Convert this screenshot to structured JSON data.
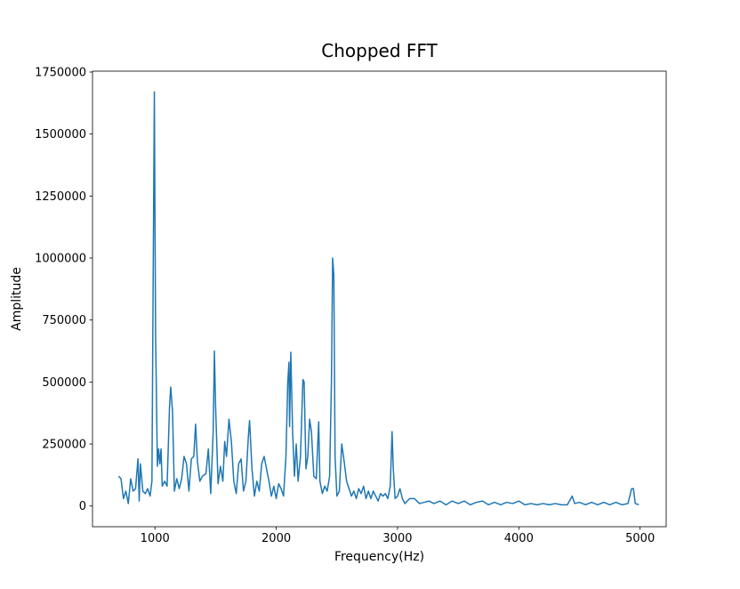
{
  "chart_data": {
    "type": "line",
    "title": "Chopped FFT",
    "x_label": "Frequency(Hz)",
    "y_label": "Amplitude",
    "xlim": [
      485,
      5215
    ],
    "ylim": [
      -83500,
      1753500
    ],
    "xticks": [
      1000,
      2000,
      3000,
      4000,
      5000
    ],
    "yticks": [
      0,
      250000,
      500000,
      750000,
      1000000,
      1250000,
      1500000,
      1750000
    ],
    "grid": false,
    "series": [
      {
        "color": "#1f77b4",
        "x": [
          700,
          720,
          740,
          760,
          780,
          800,
          820,
          840,
          860,
          870,
          880,
          900,
          920,
          940,
          960,
          975,
          985,
          995,
          1005,
          1020,
          1030,
          1040,
          1050,
          1060,
          1080,
          1100,
          1120,
          1130,
          1145,
          1160,
          1180,
          1200,
          1220,
          1240,
          1260,
          1280,
          1300,
          1320,
          1335,
          1350,
          1370,
          1390,
          1420,
          1440,
          1460,
          1480,
          1490,
          1500,
          1520,
          1540,
          1560,
          1575,
          1590,
          1610,
          1630,
          1650,
          1670,
          1690,
          1710,
          1730,
          1750,
          1770,
          1780,
          1800,
          1820,
          1840,
          1860,
          1880,
          1900,
          1920,
          1940,
          1960,
          1980,
          2000,
          2020,
          2040,
          2060,
          2080,
          2095,
          2105,
          2110,
          2120,
          2135,
          2150,
          2165,
          2180,
          2200,
          2220,
          2230,
          2245,
          2260,
          2275,
          2290,
          2310,
          2330,
          2350,
          2360,
          2380,
          2400,
          2420,
          2440,
          2455,
          2465,
          2475,
          2485,
          2500,
          2520,
          2540,
          2560,
          2580,
          2600,
          2620,
          2640,
          2660,
          2680,
          2700,
          2720,
          2740,
          2760,
          2780,
          2800,
          2820,
          2840,
          2860,
          2880,
          2900,
          2920,
          2940,
          2955,
          2965,
          2980,
          3000,
          3020,
          3040,
          3060,
          3100,
          3140,
          3180,
          3220,
          3260,
          3300,
          3350,
          3400,
          3450,
          3500,
          3550,
          3600,
          3650,
          3700,
          3750,
          3800,
          3850,
          3900,
          3950,
          4000,
          4050,
          4100,
          4150,
          4200,
          4250,
          4300,
          4350,
          4400,
          4440,
          4460,
          4500,
          4550,
          4600,
          4650,
          4700,
          4750,
          4800,
          4850,
          4900,
          4930,
          4945,
          4960,
          4990
        ],
        "values": [
          120000,
          110000,
          30000,
          60000,
          10000,
          110000,
          60000,
          70000,
          190000,
          20000,
          170000,
          60000,
          50000,
          70000,
          40000,
          100000,
          900000,
          1670000,
          700000,
          160000,
          230000,
          170000,
          230000,
          80000,
          100000,
          80000,
          400000,
          480000,
          380000,
          60000,
          110000,
          70000,
          110000,
          200000,
          170000,
          60000,
          190000,
          200000,
          330000,
          180000,
          100000,
          120000,
          130000,
          230000,
          50000,
          300000,
          625000,
          400000,
          90000,
          160000,
          100000,
          260000,
          200000,
          350000,
          260000,
          100000,
          50000,
          170000,
          190000,
          60000,
          100000,
          280000,
          345000,
          150000,
          40000,
          100000,
          60000,
          170000,
          200000,
          150000,
          100000,
          40000,
          80000,
          30000,
          90000,
          70000,
          40000,
          200000,
          500000,
          580000,
          320000,
          620000,
          300000,
          120000,
          250000,
          100000,
          200000,
          510000,
          500000,
          150000,
          200000,
          350000,
          300000,
          120000,
          110000,
          340000,
          100000,
          50000,
          80000,
          60000,
          120000,
          500000,
          1000000,
          930000,
          200000,
          40000,
          60000,
          250000,
          180000,
          100000,
          70000,
          40000,
          60000,
          30000,
          70000,
          50000,
          80000,
          30000,
          60000,
          30000,
          60000,
          40000,
          20000,
          50000,
          40000,
          50000,
          30000,
          80000,
          300000,
          150000,
          30000,
          40000,
          70000,
          30000,
          10000,
          30000,
          30000,
          10000,
          15000,
          20000,
          10000,
          20000,
          5000,
          20000,
          10000,
          20000,
          5000,
          15000,
          20000,
          5000,
          15000,
          5000,
          15000,
          10000,
          20000,
          5000,
          10000,
          5000,
          10000,
          5000,
          10000,
          5000,
          5000,
          40000,
          10000,
          15000,
          5000,
          15000,
          5000,
          15000,
          5000,
          15000,
          5000,
          10000,
          70000,
          70000,
          10000,
          5000
        ]
      }
    ]
  }
}
